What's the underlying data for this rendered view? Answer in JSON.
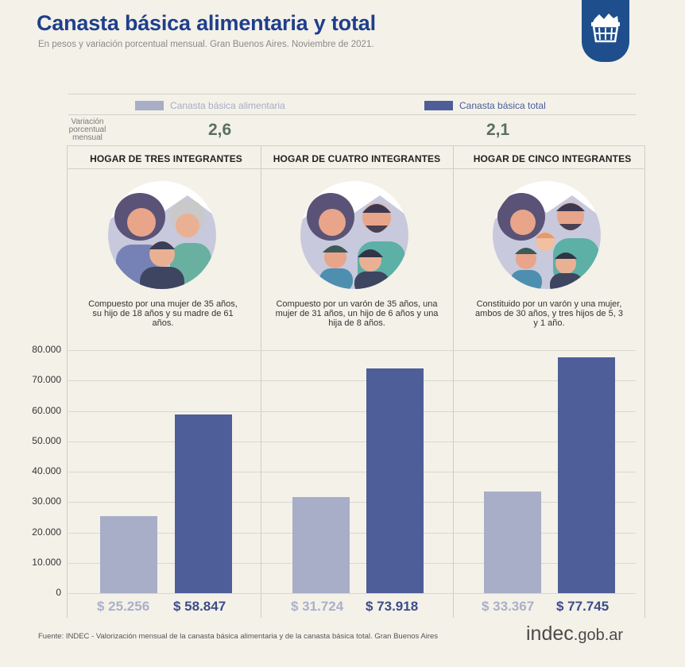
{
  "header": {
    "title": "Canasta básica alimentaria y total",
    "subtitle": "En pesos y variación porcentual mensual. Gran Buenos Aires. Noviembre de 2021."
  },
  "legend": {
    "alim": "Canasta básica alimentaria",
    "total": "Canasta básica total"
  },
  "variation": {
    "label": "Variación porcentual mensual",
    "alim": "2,6",
    "total": "2,1"
  },
  "households": [
    {
      "title": "HOGAR DE TRES INTEGRANTES",
      "description": "Compuesto por una mujer de 35 años, su hijo de 18 años y su madre de 61 años.",
      "alim_label": "$ 25.256",
      "total_label": "$ 58.847"
    },
    {
      "title": "HOGAR DE CUATRO INTEGRANTES",
      "description": "Compuesto por un varón de 35 años, una mujer de 31 años, un hijo de 6 años y una hija de 8 años.",
      "alim_label": "$ 31.724",
      "total_label": "$ 73.918"
    },
    {
      "title": "HOGAR DE CINCO INTEGRANTES",
      "description": "Constituido por un varón y una mujer, ambos de 30 años, y tres hijos de 5, 3 y 1 año.",
      "alim_label": "$ 33.367",
      "total_label": "$ 77.745"
    }
  ],
  "chart_data": {
    "type": "bar",
    "categories": [
      "HOGAR DE TRES INTEGRANTES",
      "HOGAR DE CUATRO INTEGRANTES",
      "HOGAR DE CINCO INTEGRANTES"
    ],
    "series": [
      {
        "name": "Canasta básica alimentaria",
        "values": [
          25256,
          31724,
          33367
        ]
      },
      {
        "name": "Canasta básica total",
        "values": [
          58847,
          73918,
          77745
        ]
      }
    ],
    "yticks": [
      "80.000",
      "70.000",
      "60.000",
      "50.000",
      "40.000",
      "30.000",
      "20.000",
      "10.000",
      "0"
    ],
    "ylim": [
      0,
      80000
    ],
    "grid": true,
    "legend": "top",
    "colors": {
      "alim": "#a8adc8",
      "total": "#4d5e99"
    }
  },
  "footer": {
    "source": "Fuente: INDEC - Valorización mensual de la canasta básica alimentaria y de la canasta básica total. Gran Buenos Aires",
    "logo_main": "indec",
    "logo_suffix": ".gob.ar"
  }
}
